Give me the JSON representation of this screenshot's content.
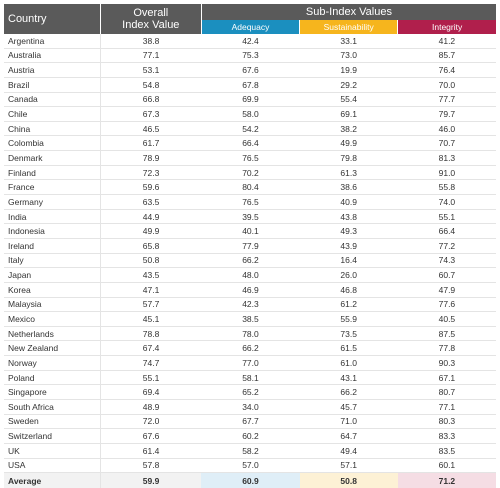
{
  "header": {
    "country": "Country",
    "overall_line1": "Overall",
    "overall_line2": "Index Value",
    "sub_index": "Sub-Index Values",
    "adequacy": "Adequacy",
    "sustainability": "Sustainability",
    "integrity": "Integrity"
  },
  "colors": {
    "header_gray": "#5a5a5a",
    "adequacy": "#1b8fbf",
    "sustainability": "#f6b51d",
    "integrity": "#b01f4c"
  },
  "chart_data": {
    "type": "table",
    "columns": [
      "Country",
      "Overall Index Value",
      "Adequacy",
      "Sustainability",
      "Integrity"
    ],
    "rows": [
      [
        "Argentina",
        "38.8",
        "42.4",
        "33.1",
        "41.2"
      ],
      [
        "Australia",
        "77.1",
        "75.3",
        "73.0",
        "85.7"
      ],
      [
        "Austria",
        "53.1",
        "67.6",
        "19.9",
        "76.4"
      ],
      [
        "Brazil",
        "54.8",
        "67.8",
        "29.2",
        "70.0"
      ],
      [
        "Canada",
        "66.8",
        "69.9",
        "55.4",
        "77.7"
      ],
      [
        "Chile",
        "67.3",
        "58.0",
        "69.1",
        "79.7"
      ],
      [
        "China",
        "46.5",
        "54.2",
        "38.2",
        "46.0"
      ],
      [
        "Colombia",
        "61.7",
        "66.4",
        "49.9",
        "70.7"
      ],
      [
        "Denmark",
        "78.9",
        "76.5",
        "79.8",
        "81.3"
      ],
      [
        "Finland",
        "72.3",
        "70.2",
        "61.3",
        "91.0"
      ],
      [
        "France",
        "59.6",
        "80.4",
        "38.6",
        "55.8"
      ],
      [
        "Germany",
        "63.5",
        "76.5",
        "40.9",
        "74.0"
      ],
      [
        "India",
        "44.9",
        "39.5",
        "43.8",
        "55.1"
      ],
      [
        "Indonesia",
        "49.9",
        "40.1",
        "49.3",
        "66.4"
      ],
      [
        "Ireland",
        "65.8",
        "77.9",
        "43.9",
        "77.2"
      ],
      [
        "Italy",
        "50.8",
        "66.2",
        "16.4",
        "74.3"
      ],
      [
        "Japan",
        "43.5",
        "48.0",
        "26.0",
        "60.7"
      ],
      [
        "Korea",
        "47.1",
        "46.9",
        "46.8",
        "47.9"
      ],
      [
        "Malaysia",
        "57.7",
        "42.3",
        "61.2",
        "77.6"
      ],
      [
        "Mexico",
        "45.1",
        "38.5",
        "55.9",
        "40.5"
      ],
      [
        "Netherlands",
        "78.8",
        "78.0",
        "73.5",
        "87.5"
      ],
      [
        "New Zealand",
        "67.4",
        "66.2",
        "61.5",
        "77.8"
      ],
      [
        "Norway",
        "74.7",
        "77.0",
        "61.0",
        "90.3"
      ],
      [
        "Poland",
        "55.1",
        "58.1",
        "43.1",
        "67.1"
      ],
      [
        "Singapore",
        "69.4",
        "65.2",
        "66.2",
        "80.7"
      ],
      [
        "South Africa",
        "48.9",
        "34.0",
        "45.7",
        "77.1"
      ],
      [
        "Sweden",
        "72.0",
        "67.7",
        "71.0",
        "80.3"
      ],
      [
        "Switzerland",
        "67.6",
        "60.2",
        "64.7",
        "83.3"
      ],
      [
        "UK",
        "61.4",
        "58.2",
        "49.4",
        "83.5"
      ],
      [
        "USA",
        "57.8",
        "57.0",
        "57.1",
        "60.1"
      ]
    ],
    "average": [
      "Average",
      "59.9",
      "60.9",
      "50.8",
      "71.2"
    ]
  }
}
